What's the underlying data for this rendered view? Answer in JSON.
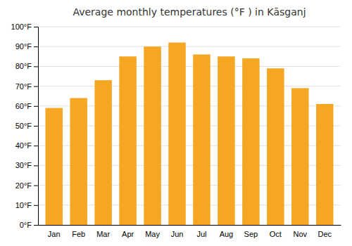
{
  "chart_data": {
    "type": "bar",
    "title": "Average monthly temperatures (°F ) in Kāsganj",
    "categories": [
      "Jan",
      "Feb",
      "Mar",
      "Apr",
      "May",
      "Jun",
      "Jul",
      "Aug",
      "Sep",
      "Oct",
      "Nov",
      "Dec"
    ],
    "values": [
      59,
      64,
      73,
      85,
      90,
      92,
      86,
      85,
      84,
      79,
      69,
      61
    ],
    "color": "#F5A623",
    "ylim": [
      0,
      100
    ],
    "yticks": [
      {
        "value": 0,
        "label": "0°F"
      },
      {
        "value": 10,
        "label": "10°F"
      },
      {
        "value": 20,
        "label": "20°F"
      },
      {
        "value": 30,
        "label": "30°F"
      },
      {
        "value": 40,
        "label": "40°F"
      },
      {
        "value": 50,
        "label": "50°F"
      },
      {
        "value": 60,
        "label": "60°F"
      },
      {
        "value": 70,
        "label": "70°F"
      },
      {
        "value": 80,
        "label": "80°F"
      },
      {
        "value": 90,
        "label": "90°F"
      },
      {
        "value": 100,
        "label": "100°F"
      }
    ],
    "grid": true
  }
}
